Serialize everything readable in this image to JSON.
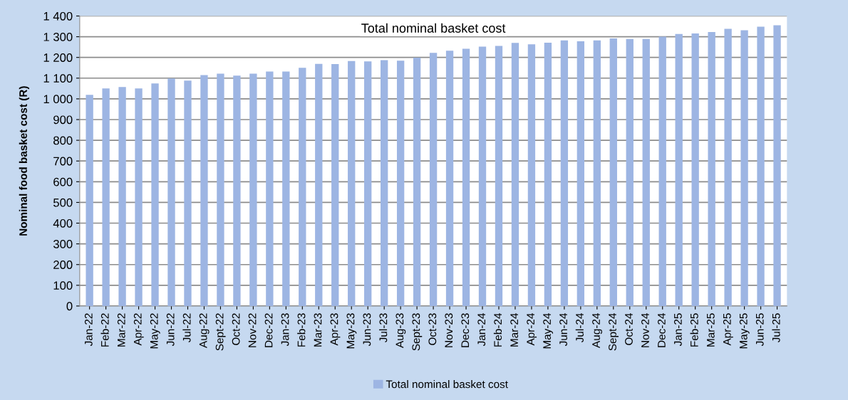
{
  "chart_data": {
    "type": "bar",
    "title": "Total nominal basket cost",
    "ylabel": "Nominal food basket cost (R)",
    "categories": [
      "Jan-22",
      "Feb-22",
      "Mar-22",
      "Apr-22",
      "May-22",
      "Jun-22",
      "Jul-22",
      "Aug-22",
      "Sept-22",
      "Oct-22",
      "Nov-22",
      "Dec-22",
      "Jan-23",
      "Feb-23",
      "Mar-23",
      "Apr-23",
      "May-23",
      "Jun-23",
      "Jul-23",
      "Aug-23",
      "Sept-23",
      "Oct-23",
      "Nov-23",
      "Dec-23",
      "Jan-24",
      "Feb-24",
      "Mar-24",
      "Apr-24",
      "May-24",
      "Jun-24",
      "Jul-24",
      "Aug-24",
      "Sept-24",
      "Oct-24",
      "Nov-24",
      "Dec-24",
      "Jan-25",
      "Feb-25",
      "Mar-25",
      "Apr-25",
      "May-25",
      "Jun-25",
      "Jul-25"
    ],
    "series": [
      {
        "name": "Total nominal basket cost",
        "color": "#9db5e3",
        "values": [
          1019,
          1050,
          1057,
          1050,
          1074,
          1098,
          1088,
          1115,
          1122,
          1112,
          1122,
          1132,
          1132,
          1150,
          1169,
          1168,
          1183,
          1181,
          1187,
          1184,
          1199,
          1222,
          1232,
          1242,
          1252,
          1256,
          1270,
          1263,
          1271,
          1282,
          1278,
          1282,
          1292,
          1289,
          1289,
          1300,
          1313,
          1316,
          1323,
          1338,
          1331,
          1348,
          1355
        ]
      }
    ],
    "ylim": [
      0,
      1400
    ],
    "yticks": [
      0,
      100,
      200,
      300,
      400,
      500,
      600,
      700,
      800,
      900,
      {
        "value": 1000,
        "label": "1 000"
      },
      {
        "value": 1100,
        "label": "1 100"
      },
      {
        "value": 1200,
        "label": "1 200"
      },
      {
        "value": 1300,
        "label": "1 300"
      },
      {
        "value": 1400,
        "label": "1 400"
      }
    ],
    "grid": "y",
    "legend": "bottom"
  }
}
